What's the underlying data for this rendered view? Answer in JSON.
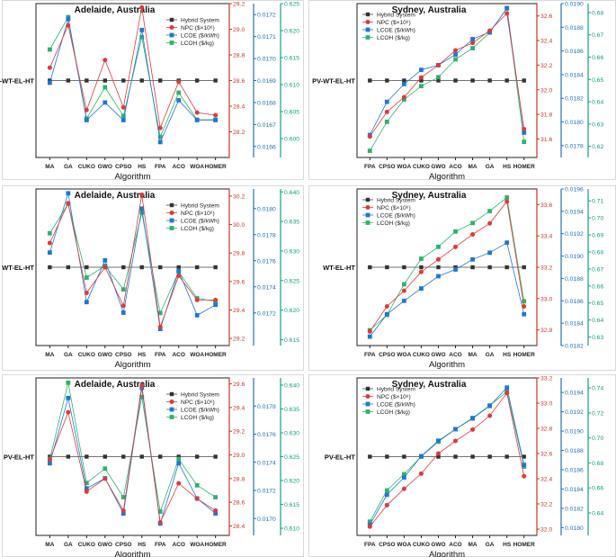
{
  "legend_labels": {
    "hybrid": "Hybrid System",
    "npc": "NPC ($×10⁶)",
    "lcoe": "LCOE ($/kWh)",
    "lcoh": "LCOH ($/kg)"
  },
  "colors": {
    "hybrid": "#333333",
    "npc": "#e0393a",
    "lcoe": "#1f77d4",
    "lcoh": "#2db36b",
    "npc_axis": "#c0392b",
    "lcoe_axis": "#2471b5",
    "lcoh_axis": "#16a085"
  },
  "chart_data": [
    {
      "type": "line",
      "title": "Adelaide, Australia",
      "xlabel": "Algorithm",
      "ylabel": "PV-WT-EL-HT",
      "categories": [
        "MA",
        "GA",
        "CUKO",
        "GWO",
        "CPSO",
        "HS",
        "FPA",
        "ACO",
        "WOA",
        "HOMER"
      ],
      "series": [
        {
          "key": "hybrid",
          "name": "Hybrid System",
          "values": [
            0.5,
            0.5,
            0.5,
            0.5,
            0.5,
            0.5,
            0.5,
            0.5,
            0.5,
            0.5
          ]
        },
        {
          "key": "npc",
          "name": "NPC ($×10⁶)",
          "values": [
            28.7,
            29.03,
            28.37,
            28.76,
            28.39,
            29.17,
            28.23,
            28.59,
            28.35,
            28.33
          ]
        },
        {
          "key": "lcoe",
          "name": "LCOE ($/kWh)",
          "values": [
            0.01689,
            0.01718,
            0.01672,
            0.0168,
            0.01672,
            0.01713,
            0.01662,
            0.01681,
            0.01672,
            0.01672
          ]
        },
        {
          "key": "lcoh",
          "name": "LCOH ($/kg)",
          "values": [
            0.6165,
            0.6225,
            0.6037,
            0.6095,
            0.6042,
            0.6188,
            0.6003,
            0.6085,
            0.6035,
            0.6035
          ]
        }
      ],
      "axes": {
        "npc": {
          "range": [
            28.0,
            29.2
          ],
          "ticks": [
            28.2,
            28.4,
            28.6,
            28.8,
            29.0,
            29.2
          ],
          "labels": [
            "28.2",
            "28.4",
            "28.6",
            "28.8",
            "29.0",
            "29.2"
          ]
        },
        "lcoe": {
          "range": [
            0.01655,
            0.01725
          ],
          "ticks": [
            0.0166,
            0.0167,
            0.0168,
            0.0169,
            0.017,
            0.0171,
            0.0172
          ],
          "labels": [
            "0.0166",
            "0.0167",
            "0.0168",
            "0.0169",
            "0.0170",
            "0.0171",
            "0.0172"
          ]
        },
        "lcoh": {
          "range": [
            0.5965,
            0.625
          ],
          "ticks": [
            0.6,
            0.605,
            0.61,
            0.615,
            0.62,
            0.625
          ],
          "labels": [
            "0.600",
            "0.605",
            "0.610",
            "0.615",
            "0.620",
            "0.625"
          ]
        }
      }
    },
    {
      "type": "line",
      "title": "Sydney, Australia",
      "xlabel": "Algorithm",
      "ylabel": "PV-WT-EL-HT",
      "categories": [
        "FPA",
        "CPSO",
        "WOA",
        "CUKO",
        "GWO",
        "ACO",
        "MA",
        "GA",
        "HS",
        "HOMER"
      ],
      "series": [
        {
          "key": "hybrid",
          "name": "Hybrid System",
          "values": [
            0.5,
            0.5,
            0.5,
            0.5,
            0.5,
            0.5,
            0.5,
            0.5,
            0.5,
            0.5
          ]
        },
        {
          "key": "npc",
          "name": "NPC ($×10⁶)",
          "values": [
            31.62,
            31.82,
            31.94,
            32.1,
            32.2,
            32.32,
            32.38,
            32.48,
            32.62,
            31.68
          ]
        },
        {
          "key": "lcoe",
          "name": "LCOE ($/kWh)",
          "values": [
            0.01789,
            0.01817,
            0.01832,
            0.01844,
            0.01848,
            0.01857,
            0.0187,
            0.01876,
            0.01896,
            0.01791
          ]
        },
        {
          "key": "lcoh",
          "name": "LCOH ($/kg)",
          "values": [
            0.618,
            0.631,
            0.641,
            0.647,
            0.651,
            0.659,
            0.664,
            0.671,
            0.682,
            0.622
          ]
        }
      ],
      "axes": {
        "npc": {
          "range": [
            31.45,
            32.7
          ],
          "ticks": [
            31.6,
            31.8,
            32.0,
            32.2,
            32.4,
            32.6
          ],
          "labels": [
            "31.6",
            "31.8",
            "32.0",
            "32.2",
            "32.4",
            "32.6"
          ]
        },
        "lcoe": {
          "range": [
            0.0177,
            0.019
          ],
          "ticks": [
            0.0178,
            0.018,
            0.0182,
            0.0184,
            0.0186,
            0.0188,
            0.019
          ],
          "labels": [
            "0.0178",
            "0.0180",
            "0.0182",
            "0.0184",
            "0.0186",
            "0.0188",
            "0.0190"
          ]
        },
        "lcoh": {
          "range": [
            0.615,
            0.684
          ],
          "ticks": [
            0.62,
            0.63,
            0.64,
            0.65,
            0.66,
            0.67,
            0.68
          ],
          "labels": [
            "0.62",
            "0.63",
            "0.64",
            "0.65",
            "0.66",
            "0.67",
            "0.68"
          ]
        }
      }
    },
    {
      "type": "line",
      "title": "Adelaide, Australia",
      "xlabel": "Algorithm",
      "ylabel": "WT-EL-HT",
      "categories": [
        "MA",
        "GA",
        "CUKO",
        "GWO",
        "CPSO",
        "HS",
        "FPA",
        "ACO",
        "WOA",
        "HOMER"
      ],
      "series": [
        {
          "key": "hybrid",
          "name": "Hybrid System",
          "values": [
            0.5,
            0.5,
            0.5,
            0.5,
            0.5,
            0.5,
            0.5,
            0.5,
            0.5,
            0.5
          ]
        },
        {
          "key": "npc",
          "name": "NPC ($×10⁶)",
          "values": [
            29.87,
            30.15,
            29.52,
            29.7,
            29.43,
            30.21,
            29.28,
            29.64,
            29.47,
            29.47
          ]
        },
        {
          "key": "lcoe",
          "name": "LCOE ($/kWh)",
          "values": [
            0.017663,
            0.018117,
            0.017283,
            0.017603,
            0.017202,
            0.018,
            0.017077,
            0.017522,
            0.017182,
            0.017262
          ]
        },
        {
          "key": "lcoh",
          "name": "LCOH ($/kg)",
          "values": [
            0.633,
            0.638,
            0.6255,
            0.6275,
            0.6235,
            0.6365,
            0.6195,
            0.6265,
            0.622,
            0.6215
          ]
        }
      ],
      "axes": {
        "npc": {
          "range": [
            29.15,
            30.25
          ],
          "ticks": [
            29.2,
            29.4,
            29.6,
            29.8,
            30.0,
            30.2
          ],
          "labels": [
            "29.2",
            "29.4",
            "29.6",
            "29.8",
            "30.0",
            "30.2"
          ]
        },
        "lcoe": {
          "range": [
            0.01695,
            0.01815
          ],
          "ticks": [
            0.0172,
            0.0174,
            0.0176,
            0.0178,
            0.018
          ],
          "labels": [
            "0.0172",
            "0.0174",
            "0.0176",
            "0.0178",
            "0.0180"
          ]
        },
        "lcoh": {
          "range": [
            0.614,
            0.6405
          ],
          "ticks": [
            0.615,
            0.62,
            0.625,
            0.63,
            0.635,
            0.64
          ],
          "labels": [
            "0.615",
            "0.620",
            "0.625",
            "0.630",
            "0.635",
            "0.640"
          ]
        }
      }
    },
    {
      "type": "line",
      "title": "Sydney, Australia",
      "xlabel": "Algorithm",
      "ylabel": "WT-EL-HT",
      "categories": [
        "FPA",
        "CPSO",
        "WOA",
        "CUKO",
        "GWO",
        "ACO",
        "MA",
        "GA",
        "HS",
        "HOMER"
      ],
      "series": [
        {
          "key": "hybrid",
          "name": "Hybrid System",
          "values": [
            0.5,
            0.5,
            0.5,
            0.5,
            0.5,
            0.5,
            0.5,
            0.5,
            0.5,
            0.5
          ]
        },
        {
          "key": "npc",
          "name": "NPC ($×10⁶)",
          "values": [
            32.79,
            32.95,
            33.05,
            33.17,
            33.25,
            33.33,
            33.41,
            33.48,
            33.62,
            32.95
          ]
        },
        {
          "key": "lcoe",
          "name": "LCOE ($/kWh)",
          "values": [
            0.01828,
            0.01848,
            0.0186,
            0.01871,
            0.01882,
            0.01888,
            0.01897,
            0.01903,
            0.01912,
            0.01848
          ]
        },
        {
          "key": "lcoh",
          "name": "LCOH ($/kg)",
          "values": [
            0.634,
            0.643,
            0.661,
            0.676,
            0.683,
            0.692,
            0.697,
            0.704,
            0.712,
            0.651
          ]
        }
      ],
      "axes": {
        "npc": {
          "range": [
            32.7,
            33.7
          ],
          "ticks": [
            32.8,
            33.0,
            33.2,
            33.4,
            33.6
          ],
          "labels": [
            "32.8",
            "33.0",
            "33.2",
            "33.4",
            "33.6"
          ]
        },
        "lcoe": {
          "range": [
            0.0182,
            0.0196
          ],
          "ticks": [
            0.0182,
            0.0184,
            0.0186,
            0.0188,
            0.019,
            0.0192,
            0.0194,
            0.0196
          ],
          "labels": [
            "0.0182",
            "0.0184",
            "0.0186",
            "0.0188",
            "0.0190",
            "0.0192",
            "0.0194",
            "0.0196"
          ]
        },
        "lcoh": {
          "range": [
            0.625,
            0.717
          ],
          "ticks": [
            0.63,
            0.64,
            0.65,
            0.66,
            0.67,
            0.68,
            0.69,
            0.7,
            0.71
          ],
          "labels": [
            "0.63",
            "0.64",
            "0.65",
            "0.66",
            "0.67",
            "0.68",
            "0.69",
            "0.70",
            "0.71"
          ]
        }
      }
    },
    {
      "type": "line",
      "title": "Adelaide, Australia",
      "xlabel": "Algorithm",
      "ylabel": "PV-EL-HT",
      "categories": [
        "MA",
        "GA",
        "CUKO",
        "GWO",
        "CPSO",
        "HS",
        "FPA",
        "ACO",
        "WOA",
        "HOMER"
      ],
      "series": [
        {
          "key": "hybrid",
          "name": "Hybrid System",
          "values": [
            0.5,
            0.5,
            0.5,
            0.5,
            0.5,
            0.5,
            0.5,
            0.5,
            0.5,
            0.5
          ]
        },
        {
          "key": "npc",
          "name": "NPC ($×10⁶)",
          "values": [
            28.96,
            29.36,
            28.69,
            28.8,
            28.53,
            29.59,
            28.43,
            28.76,
            28.63,
            28.53
          ]
        },
        {
          "key": "lcoe",
          "name": "LCOE ($/kWh)",
          "values": [
            0.017393,
            0.017857,
            0.017214,
            0.017286,
            0.017036,
            0.017929,
            0.016964,
            0.017393,
            0.017143,
            0.017036
          ]
        },
        {
          "key": "lcoh",
          "name": "LCOH ($/kg)",
          "values": [
            0.6245,
            0.6405,
            0.6195,
            0.6225,
            0.6165,
            0.6375,
            0.6135,
            0.6245,
            0.619,
            0.6165
          ]
        }
      ],
      "axes": {
        "npc": {
          "range": [
            28.32,
            29.65
          ],
          "ticks": [
            28.4,
            28.6,
            28.8,
            29.0,
            29.2,
            29.4,
            29.6
          ],
          "labels": [
            "28.4",
            "28.6",
            "28.8",
            "29.0",
            "29.2",
            "29.4",
            "29.6"
          ]
        },
        "lcoe": {
          "range": [
            0.01688,
            0.018
          ],
          "ticks": [
            0.017,
            0.0172,
            0.0174,
            0.0176,
            0.0178
          ],
          "labels": [
            "0.0170",
            "0.0172",
            "0.0174",
            "0.0176",
            "0.0178"
          ]
        },
        "lcoh": {
          "range": [
            0.6085,
            0.6415
          ],
          "ticks": [
            0.61,
            0.615,
            0.62,
            0.625,
            0.63,
            0.635,
            0.64
          ],
          "labels": [
            "0.610",
            "0.615",
            "0.620",
            "0.625",
            "0.630",
            "0.635",
            "0.640"
          ]
        }
      }
    },
    {
      "type": "line",
      "title": "Sydney, Australia",
      "xlabel": "Algorithm",
      "ylabel": "PV-EL-HT",
      "categories": [
        "FPA",
        "CPSO",
        "WOA",
        "CUKO",
        "GWO",
        "ACO",
        "MA",
        "GA",
        "HS",
        "HOMER"
      ],
      "series": [
        {
          "key": "hybrid",
          "name": "Hybrid System",
          "values": [
            0.5,
            0.5,
            0.5,
            0.5,
            0.5,
            0.5,
            0.5,
            0.5,
            0.5,
            0.5
          ]
        },
        {
          "key": "npc",
          "name": "NPC ($×10⁶)",
          "values": [
            32.02,
            32.19,
            32.32,
            32.44,
            32.6,
            32.7,
            32.79,
            32.9,
            33.08,
            32.42
          ]
        },
        {
          "key": "lcoe",
          "name": "LCOE ($/kWh)",
          "values": [
            0.01803,
            0.01834,
            0.01852,
            0.01874,
            0.0189,
            0.01902,
            0.01913,
            0.01926,
            0.01945,
            0.01865
          ]
        },
        {
          "key": "lcoh",
          "name": "LCOH ($/kg)",
          "values": [
            0.633,
            0.658,
            0.671,
            0.685,
            0.697,
            0.707,
            0.716,
            0.726,
            0.737,
            0.677
          ]
        }
      ],
      "axes": {
        "npc": {
          "range": [
            31.95,
            33.2
          ],
          "ticks": [
            32.0,
            32.2,
            32.4,
            32.6,
            32.8,
            33.0,
            33.2
          ],
          "labels": [
            "32.0",
            "32.2",
            "32.4",
            "32.6",
            "32.8",
            "33.0",
            "33.2"
          ]
        },
        "lcoe": {
          "range": [
            0.01792,
            0.01955
          ],
          "ticks": [
            0.018,
            0.0182,
            0.0184,
            0.0186,
            0.0188,
            0.019,
            0.0192,
            0.0194
          ],
          "labels": [
            "0.0180",
            "0.0182",
            "0.0184",
            "0.0186",
            "0.0188",
            "0.0190",
            "0.0192",
            "0.0194"
          ]
        },
        "lcoh": {
          "range": [
            0.622,
            0.748
          ],
          "ticks": [
            0.64,
            0.66,
            0.68,
            0.7,
            0.72,
            0.74
          ],
          "labels": [
            "0.64",
            "0.66",
            "0.68",
            "0.70",
            "0.72",
            "0.74"
          ]
        }
      }
    }
  ]
}
